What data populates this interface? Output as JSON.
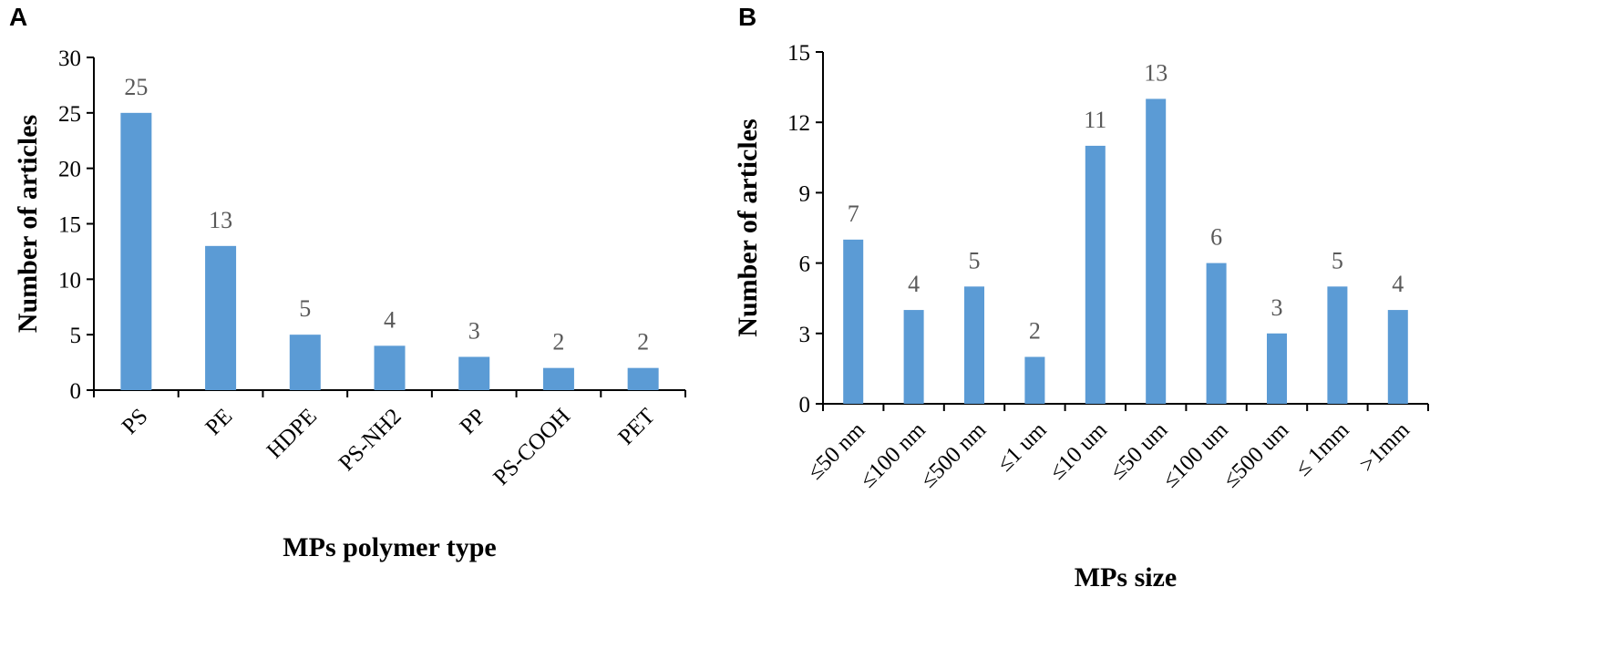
{
  "chart_data": [
    {
      "panel": "A",
      "type": "bar",
      "categories": [
        "PS",
        "PE",
        "HDPE",
        "PS-NH2",
        "PP",
        "PS-COOH",
        "PET"
      ],
      "values": [
        25,
        13,
        5,
        4,
        3,
        2,
        2
      ],
      "data_labels": [
        "25",
        "13",
        "5",
        "4",
        "3",
        "2",
        "2"
      ],
      "ylim": [
        0,
        30
      ],
      "yticks": [
        0,
        5,
        10,
        15,
        20,
        25,
        30
      ],
      "xlabel": "MPs polymer type",
      "ylabel": "Number of articles",
      "bar_color": "#5b9bd5",
      "label_color": "#595959",
      "grid": false
    },
    {
      "panel": "B",
      "type": "bar",
      "categories": [
        "≤50 nm",
        "≤100 nm",
        "≤500 nm",
        "≤1 um",
        "≤10 um",
        "≤50 um",
        "≤100 um",
        "≤500 um",
        "≤ 1mm",
        ">1mm"
      ],
      "values": [
        7,
        4,
        5,
        2,
        11,
        13,
        6,
        3,
        5,
        4
      ],
      "data_labels": [
        "7",
        "4",
        "5",
        "2",
        "11",
        "13",
        "6",
        "3",
        "5",
        "4"
      ],
      "ylim": [
        0,
        15
      ],
      "yticks": [
        0,
        3,
        6,
        9,
        12,
        15
      ],
      "xlabel": "MPs size",
      "ylabel": "Number of articles",
      "bar_color": "#5b9bd5",
      "label_color": "#595959",
      "grid": false
    }
  ]
}
